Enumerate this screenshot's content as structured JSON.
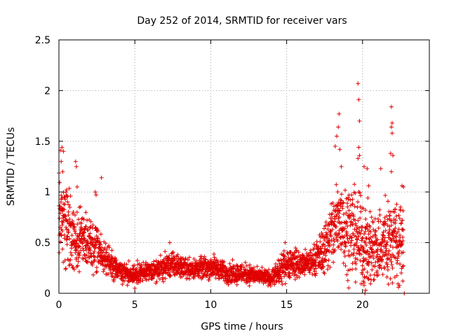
{
  "chart_data": {
    "type": "scatter",
    "title": "Day 252 of 2014, SRMTID for receiver vars",
    "xlabel": "GPS time / hours",
    "ylabel": "SRMTID / TECUs",
    "xlim": [
      0,
      24.4
    ],
    "ylim": [
      0,
      2.5
    ],
    "x_ticks": [
      0,
      5,
      10,
      15,
      20
    ],
    "x_tick_labels": [
      "0",
      "5",
      "10",
      "15",
      "20"
    ],
    "y_ticks": [
      0,
      0.5,
      1,
      1.5,
      2,
      2.5
    ],
    "y_tick_labels": [
      "0",
      "0.5",
      "1",
      "1.5",
      "2",
      "2.5"
    ],
    "grid": true,
    "marker": "plus",
    "colors": {
      "marker": "#e00000",
      "grid": "#a0a0a0",
      "axis": "#000000"
    },
    "series": [
      {
        "name": "SRMTID",
        "envelope_x": [
          0,
          0.5,
          1,
          1.5,
          2,
          2.5,
          3,
          3.5,
          4,
          4.5,
          5,
          5.5,
          6,
          6.5,
          7,
          7.5,
          8,
          8.5,
          9,
          9.5,
          10,
          10.5,
          11,
          11.5,
          12,
          12.5,
          13,
          13.5,
          14,
          14.5,
          15,
          15.5,
          16,
          16.5,
          17,
          17.5,
          18,
          18.5,
          19,
          19.5,
          20,
          20.5,
          21,
          21.5,
          22,
          22.5,
          22.7
        ],
        "envelope_level": [
          0.8,
          0.7,
          0.55,
          0.55,
          0.5,
          0.45,
          0.35,
          0.28,
          0.22,
          0.2,
          0.19,
          0.2,
          0.21,
          0.23,
          0.26,
          0.28,
          0.26,
          0.25,
          0.24,
          0.25,
          0.26,
          0.24,
          0.2,
          0.2,
          0.2,
          0.19,
          0.17,
          0.16,
          0.15,
          0.2,
          0.3,
          0.3,
          0.28,
          0.3,
          0.35,
          0.45,
          0.6,
          0.75,
          0.65,
          0.6,
          0.5,
          0.45,
          0.45,
          0.5,
          0.55,
          0.5,
          0.45
        ],
        "envelope_spread": [
          0.35,
          0.35,
          0.25,
          0.2,
          0.2,
          0.2,
          0.15,
          0.1,
          0.08,
          0.08,
          0.08,
          0.08,
          0.08,
          0.08,
          0.1,
          0.1,
          0.08,
          0.08,
          0.08,
          0.08,
          0.1,
          0.08,
          0.08,
          0.08,
          0.08,
          0.08,
          0.06,
          0.06,
          0.06,
          0.1,
          0.12,
          0.12,
          0.1,
          0.1,
          0.12,
          0.2,
          0.3,
          0.35,
          0.35,
          0.35,
          0.3,
          0.3,
          0.3,
          0.35,
          0.35,
          0.3,
          0.3
        ],
        "peaks": [
          {
            "x": 0.1,
            "y": 1.41
          },
          {
            "x": 0.2,
            "y": 1.44
          },
          {
            "x": 0.3,
            "y": 1.4
          },
          {
            "x": 0.15,
            "y": 1.3
          },
          {
            "x": 0.25,
            "y": 1.2
          },
          {
            "x": 0.5,
            "y": 1.02
          },
          {
            "x": 1.1,
            "y": 1.3
          },
          {
            "x": 1.15,
            "y": 1.25
          },
          {
            "x": 1.2,
            "y": 1.05
          },
          {
            "x": 2.4,
            "y": 1.0
          },
          {
            "x": 2.45,
            "y": 0.97
          },
          {
            "x": 2.8,
            "y": 1.14
          },
          {
            "x": 5.0,
            "y": 0.05
          },
          {
            "x": 7.3,
            "y": 0.5
          },
          {
            "x": 14.9,
            "y": 0.5
          },
          {
            "x": 18.2,
            "y": 1.45
          },
          {
            "x": 18.3,
            "y": 1.55
          },
          {
            "x": 18.4,
            "y": 1.64
          },
          {
            "x": 18.45,
            "y": 1.77
          },
          {
            "x": 18.5,
            "y": 1.42
          },
          {
            "x": 18.6,
            "y": 1.25
          },
          {
            "x": 19.7,
            "y": 2.07
          },
          {
            "x": 19.75,
            "y": 1.91
          },
          {
            "x": 19.8,
            "y": 1.7
          },
          {
            "x": 19.75,
            "y": 1.44
          },
          {
            "x": 19.8,
            "y": 1.36
          },
          {
            "x": 19.7,
            "y": 1.33
          },
          {
            "x": 20.1,
            "y": 1.25
          },
          {
            "x": 20.3,
            "y": 1.23
          },
          {
            "x": 20.4,
            "y": 1.06
          },
          {
            "x": 20.1,
            "y": 0.08
          },
          {
            "x": 20.2,
            "y": 0.03
          },
          {
            "x": 20.15,
            "y": 0.0
          },
          {
            "x": 20.05,
            "y": 0.12
          },
          {
            "x": 21.2,
            "y": 1.23
          },
          {
            "x": 21.9,
            "y": 1.84
          },
          {
            "x": 21.95,
            "y": 1.68
          },
          {
            "x": 21.9,
            "y": 1.64
          },
          {
            "x": 21.95,
            "y": 1.58
          },
          {
            "x": 21.85,
            "y": 1.38
          },
          {
            "x": 22.0,
            "y": 1.36
          },
          {
            "x": 21.9,
            "y": 1.2
          },
          {
            "x": 22.6,
            "y": 1.06
          },
          {
            "x": 22.7,
            "y": 1.05
          },
          {
            "x": 22.75,
            "y": 0.0
          },
          {
            "x": 22.5,
            "y": 0.85
          }
        ]
      }
    ]
  }
}
